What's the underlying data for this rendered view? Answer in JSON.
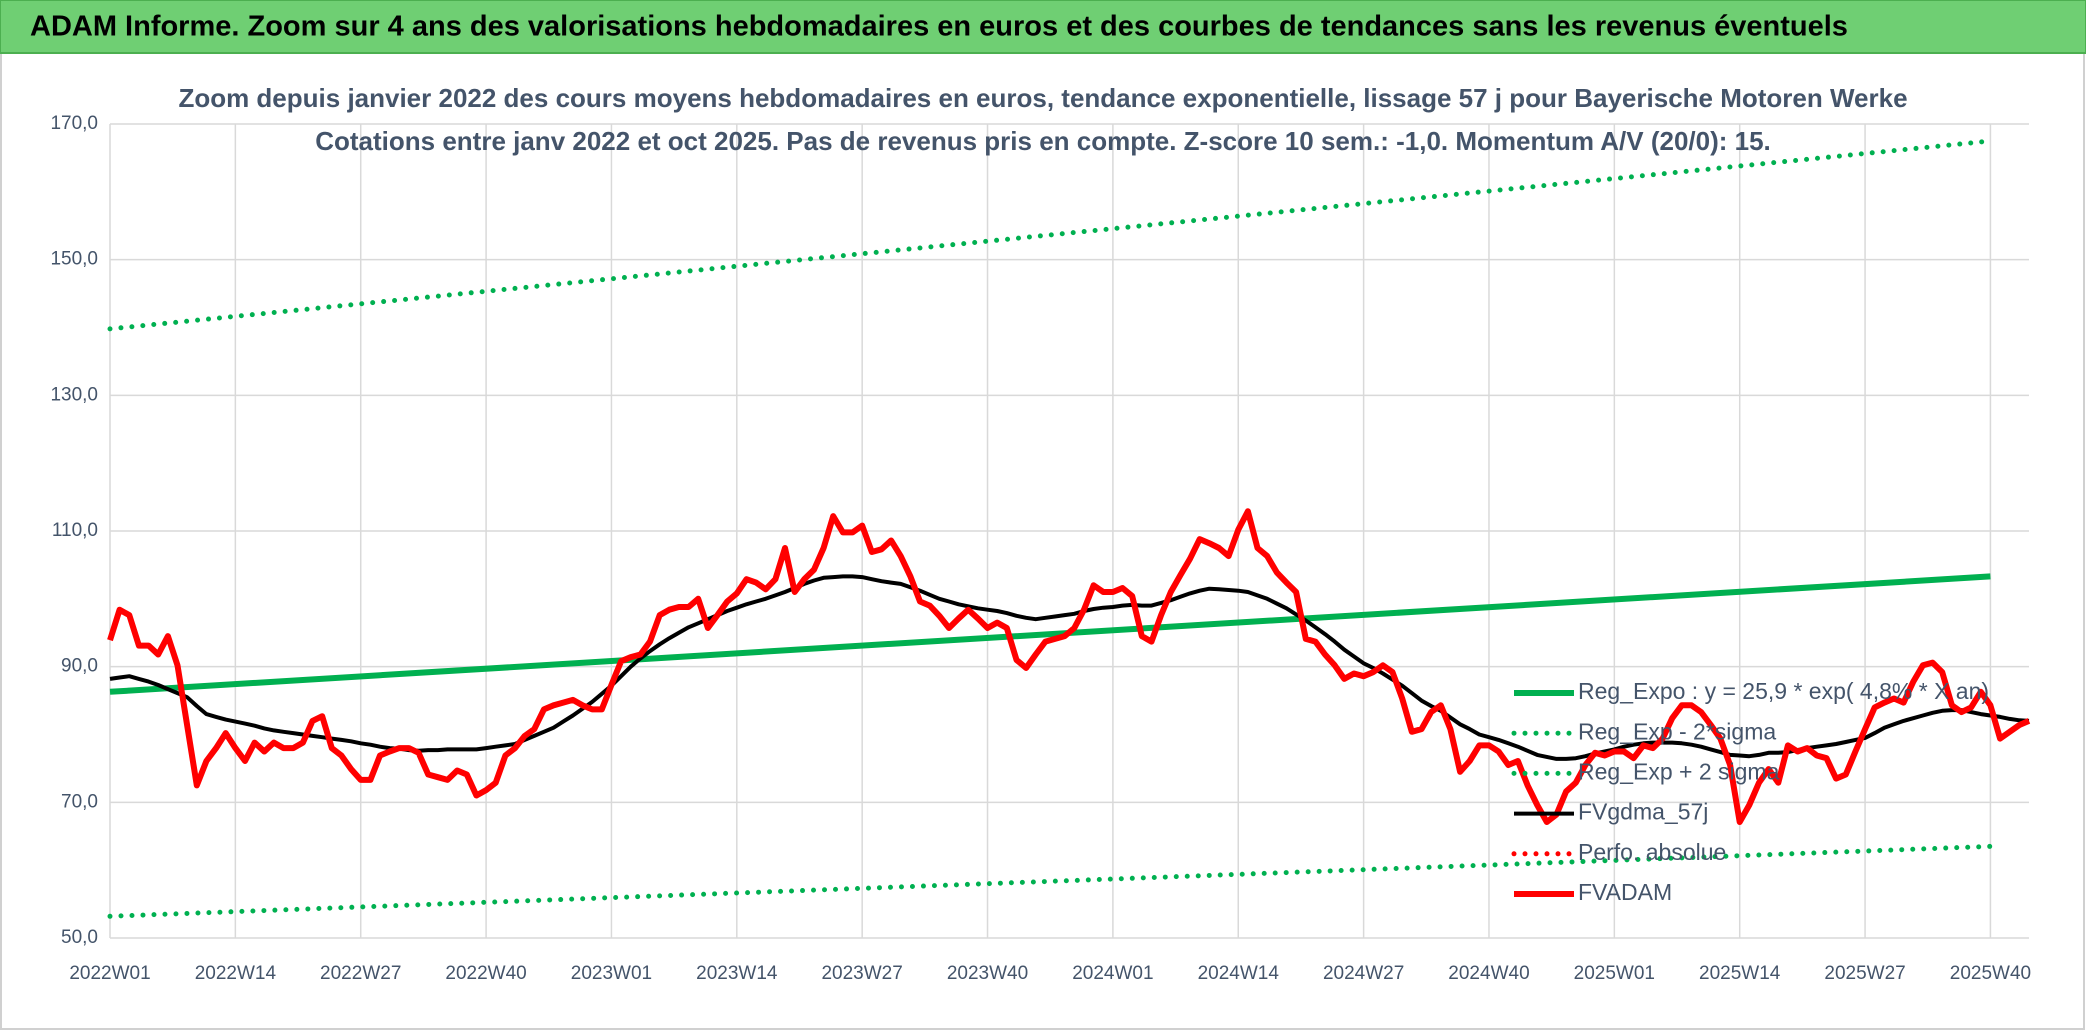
{
  "header": {
    "title": "ADAM Informe. Zoom sur 4 ans des valorisations hebdomadaires en euros et des courbes de tendances sans les revenus éventuels"
  },
  "chart_data": {
    "type": "line",
    "title": "Zoom depuis janvier 2022 des cours moyens hebdomadaires en euros, tendance exponentielle, lissage 57 j pour Bayerische Motoren Werke",
    "subtitle": "Cotations entre janv 2022 et oct 2025. Pas de revenus pris en compte. Z-score 10 sem.: -1,0. Momentum A/V (20/0): 15.",
    "categories": [
      "2022W01",
      null,
      null,
      null,
      null,
      null,
      null,
      null,
      null,
      null,
      null,
      null,
      null,
      "2022W14",
      null,
      null,
      null,
      null,
      null,
      null,
      null,
      null,
      null,
      null,
      null,
      null,
      "2022W27",
      null,
      null,
      null,
      null,
      null,
      null,
      null,
      null,
      null,
      null,
      null,
      null,
      "2022W40",
      null,
      null,
      null,
      null,
      null,
      null,
      null,
      null,
      null,
      null,
      null,
      null,
      "2023W01",
      null,
      null,
      null,
      null,
      null,
      null,
      null,
      null,
      null,
      null,
      null,
      null,
      "2023W14",
      null,
      null,
      null,
      null,
      null,
      null,
      null,
      null,
      null,
      null,
      null,
      null,
      "2023W27",
      null,
      null,
      null,
      null,
      null,
      null,
      null,
      null,
      null,
      null,
      null,
      null,
      "2023W40",
      null,
      null,
      null,
      null,
      null,
      null,
      null,
      null,
      null,
      null,
      null,
      null,
      "2024W01",
      null,
      null,
      null,
      null,
      null,
      null,
      null,
      null,
      null,
      null,
      null,
      null,
      "2024W14",
      null,
      null,
      null,
      null,
      null,
      null,
      null,
      null,
      null,
      null,
      null,
      null,
      "2024W27",
      null,
      null,
      null,
      null,
      null,
      null,
      null,
      null,
      null,
      null,
      null,
      null,
      "2024W40",
      null,
      null,
      null,
      null,
      null,
      null,
      null,
      null,
      null,
      null,
      null,
      null,
      "2025W01",
      null,
      null,
      null,
      null,
      null,
      null,
      null,
      null,
      null,
      null,
      null,
      null,
      "2025W14",
      null,
      null,
      null,
      null,
      null,
      null,
      null,
      null,
      null,
      null,
      null,
      null,
      "2025W27",
      null,
      null,
      null,
      null,
      null,
      null,
      null,
      null,
      null,
      null,
      null,
      null,
      "2025W40",
      null,
      null,
      null,
      null
    ],
    "series": [
      {
        "name": "Reg_Expo : y = 25,9 * exp( 4,8% * X  an)",
        "color": "#00b050",
        "style": "solid",
        "x": [
          "2022W01",
          "2025W40"
        ],
        "values": [
          86.3,
          103.3
        ]
      },
      {
        "name": "Reg_Exp - 2*sigma",
        "color": "#00b050",
        "style": "dotted",
        "x": [
          "2022W01",
          "2025W40"
        ],
        "values": [
          53.2,
          63.5
        ]
      },
      {
        "name": "Reg_Exp + 2 sigma",
        "color": "#00b050",
        "style": "dotted",
        "x": [
          "2022W01",
          "2025W40"
        ],
        "values": [
          139.8,
          167.5
        ]
      },
      {
        "name": "FVgdma_57j",
        "color": "#000000",
        "style": "solid",
        "values": [
          88.2,
          88.4,
          88.6,
          88.2,
          87.8,
          87.3,
          86.7,
          86.1,
          85.5,
          84.2,
          83.0,
          82.6,
          82.2,
          81.9,
          81.6,
          81.3,
          80.9,
          80.6,
          80.4,
          80.2,
          80.0,
          79.8,
          79.6,
          79.4,
          79.2,
          79.0,
          78.7,
          78.5,
          78.2,
          78.0,
          77.9,
          77.7,
          77.6,
          77.7,
          77.7,
          77.8,
          77.8,
          77.8,
          77.8,
          78.0,
          78.2,
          78.4,
          78.6,
          79.2,
          79.8,
          80.4,
          81.0,
          81.9,
          82.8,
          83.8,
          84.8,
          86.0,
          87.2,
          88.6,
          90.0,
          91.2,
          92.3,
          93.3,
          94.2,
          95.0,
          95.8,
          96.4,
          97.0,
          97.6,
          98.2,
          98.7,
          99.2,
          99.6,
          100.0,
          100.5,
          101.0,
          101.6,
          102.2,
          102.7,
          103.1,
          103.2,
          103.3,
          103.3,
          103.2,
          102.9,
          102.6,
          102.4,
          102.2,
          101.7,
          101.2,
          100.6,
          100.0,
          99.6,
          99.2,
          98.9,
          98.6,
          98.4,
          98.2,
          97.9,
          97.5,
          97.2,
          97.0,
          97.2,
          97.4,
          97.6,
          97.8,
          98.2,
          98.5,
          98.7,
          98.8,
          99.0,
          99.1,
          99.0,
          99.0,
          99.4,
          99.8,
          100.3,
          100.8,
          101.2,
          101.5,
          101.4,
          101.3,
          101.2,
          101.0,
          100.5,
          100.0,
          99.3,
          98.6,
          97.7,
          96.8,
          95.8,
          94.8,
          93.7,
          92.5,
          91.5,
          90.5,
          89.8,
          89.0,
          88.1,
          87.2,
          86.1,
          85.0,
          84.2,
          83.5,
          82.5,
          81.5,
          80.8,
          80.0,
          79.6,
          79.2,
          78.7,
          78.2,
          77.6,
          77.0,
          76.7,
          76.4,
          76.4,
          76.5,
          76.8,
          77.2,
          77.5,
          77.8,
          78.2,
          78.5,
          78.7,
          78.8,
          78.8,
          78.8,
          78.7,
          78.5,
          78.2,
          77.8,
          77.4,
          77.0,
          76.9,
          76.8,
          77.0,
          77.3,
          77.3,
          77.4,
          77.7,
          78.0,
          78.2,
          78.4,
          78.6,
          78.9,
          79.2,
          79.5,
          80.2,
          81.0,
          81.5,
          82.0,
          82.4,
          82.8,
          83.2,
          83.5,
          83.6,
          83.6,
          83.3,
          83.0,
          82.8,
          82.6,
          82.3,
          82.1,
          82.0
        ]
      },
      {
        "name": "Perfo. absolue",
        "color": "#ff0000",
        "style": "dotted",
        "x": [],
        "values": []
      },
      {
        "name": "FVADAM",
        "color": "#ff0000",
        "style": "thick",
        "values": [
          93.9,
          98.4,
          97.6,
          93.1,
          93.1,
          91.8,
          94.5,
          90.2,
          81.4,
          72.5,
          76.1,
          78.0,
          80.2,
          78.0,
          76.1,
          78.8,
          77.5,
          78.8,
          78.0,
          78.0,
          78.8,
          82.0,
          82.7,
          78.0,
          76.9,
          74.9,
          73.3,
          73.3,
          76.9,
          77.5,
          78.0,
          78.0,
          77.3,
          74.1,
          73.7,
          73.3,
          74.7,
          74.1,
          71.0,
          71.8,
          72.9,
          76.9,
          78.0,
          79.8,
          80.8,
          83.7,
          84.3,
          84.7,
          85.1,
          84.3,
          83.7,
          83.7,
          87.3,
          90.8,
          91.4,
          91.8,
          93.7,
          97.6,
          98.4,
          98.8,
          98.8,
          100.0,
          95.7,
          97.6,
          99.6,
          100.8,
          102.9,
          102.4,
          101.4,
          102.9,
          107.5,
          101.0,
          102.9,
          104.3,
          107.5,
          112.2,
          109.8,
          109.8,
          110.8,
          106.9,
          107.3,
          108.6,
          106.3,
          103.3,
          99.6,
          99.0,
          97.5,
          95.7,
          97.1,
          98.4,
          97.1,
          95.7,
          96.5,
          95.7,
          91.0,
          89.8,
          91.8,
          93.7,
          94.1,
          94.5,
          95.7,
          98.4,
          102.0,
          101.0,
          101.0,
          101.6,
          100.4,
          94.5,
          93.7,
          97.6,
          101.0,
          103.5,
          105.9,
          108.8,
          108.2,
          107.5,
          106.3,
          110.2,
          112.9,
          107.5,
          106.3,
          103.9,
          102.4,
          101.0,
          94.1,
          93.7,
          91.8,
          90.2,
          88.2,
          89.0,
          88.6,
          89.2,
          90.2,
          89.2,
          85.3,
          80.4,
          80.8,
          83.3,
          84.3,
          80.8,
          74.5,
          76.1,
          78.4,
          78.4,
          77.5,
          75.5,
          76.1,
          72.5,
          69.6,
          67.1,
          68.2,
          71.6,
          72.9,
          75.5,
          77.3,
          76.9,
          77.5,
          77.5,
          76.5,
          78.4,
          78.0,
          79.4,
          82.4,
          84.3,
          84.3,
          83.3,
          81.4,
          79.4,
          75.5,
          67.1,
          69.6,
          72.9,
          74.9,
          72.9,
          78.4,
          77.5,
          78.0,
          76.9,
          76.5,
          73.5,
          74.1,
          77.5,
          80.8,
          84.0,
          84.7,
          85.3,
          84.7,
          87.8,
          90.2,
          90.6,
          89.2,
          84.3,
          83.3,
          84.0,
          86.3,
          84.3,
          79.4,
          80.4,
          81.4,
          82.0
        ]
      }
    ],
    "ylim": [
      50,
      170
    ],
    "yticks": [
      {
        "value": 50,
        "label": "50,0"
      },
      {
        "value": 70,
        "label": "70,0"
      },
      {
        "value": 90,
        "label": "90,0"
      },
      {
        "value": 110,
        "label": "110,0"
      },
      {
        "value": 130,
        "label": "130,0"
      },
      {
        "value": 150,
        "label": "150,0"
      },
      {
        "value": 170,
        "label": "170,0"
      }
    ],
    "grid": true,
    "legend": "right"
  }
}
